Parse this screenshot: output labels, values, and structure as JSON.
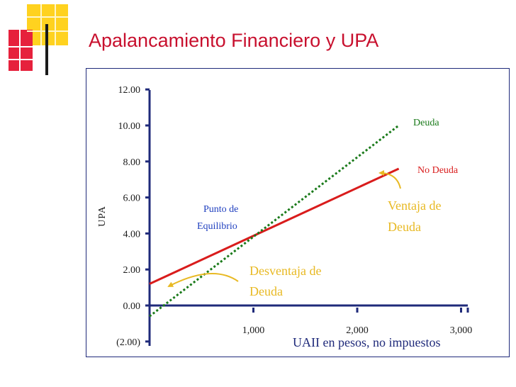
{
  "title": "Apalancamiento Financiero y UPA",
  "colors": {
    "title": "#c8102e",
    "axis": "#1f2a7a",
    "deuda": "#1a7a1a",
    "no_deuda": "#d91c1c",
    "annotation_gold": "#e8b923",
    "annotation_blue": "#1f3fbf"
  },
  "chart_data": {
    "type": "line",
    "xlabel": "UAII en pesos, no impuestos",
    "ylabel": "UPA",
    "xlim": [
      0,
      3400
    ],
    "ylim": [
      -2,
      12
    ],
    "x_ticks": [
      {
        "value": 1000,
        "label": "1,000"
      },
      {
        "value": 2000,
        "label": "2,000"
      },
      {
        "value": 3000,
        "label": "3,000"
      }
    ],
    "y_ticks": [
      {
        "value": 12,
        "label": "12.00"
      },
      {
        "value": 10,
        "label": "10.00"
      },
      {
        "value": 8,
        "label": "8.00"
      },
      {
        "value": 6,
        "label": "6.00"
      },
      {
        "value": 4,
        "label": "4.00"
      },
      {
        "value": 2,
        "label": "2.00"
      },
      {
        "value": 0,
        "label": "0.00"
      },
      {
        "value": -2,
        "label": "(2.00)"
      }
    ],
    "series": [
      {
        "name": "No Deuda",
        "style": "solid",
        "x": [
          0,
          2400
        ],
        "y": [
          1.2,
          7.6
        ]
      },
      {
        "name": "Deuda",
        "style": "dotted",
        "x": [
          0,
          2400
        ],
        "y": [
          -0.6,
          10.0
        ]
      }
    ],
    "annotations": [
      {
        "text_lines": [
          "Punto de",
          "Equilibrio"
        ],
        "color": "blue"
      },
      {
        "text_lines": [
          "Ventaja de",
          "Deuda"
        ],
        "color": "gold"
      },
      {
        "text_lines": [
          "Desventaja de",
          "Deuda"
        ],
        "color": "gold"
      }
    ]
  }
}
